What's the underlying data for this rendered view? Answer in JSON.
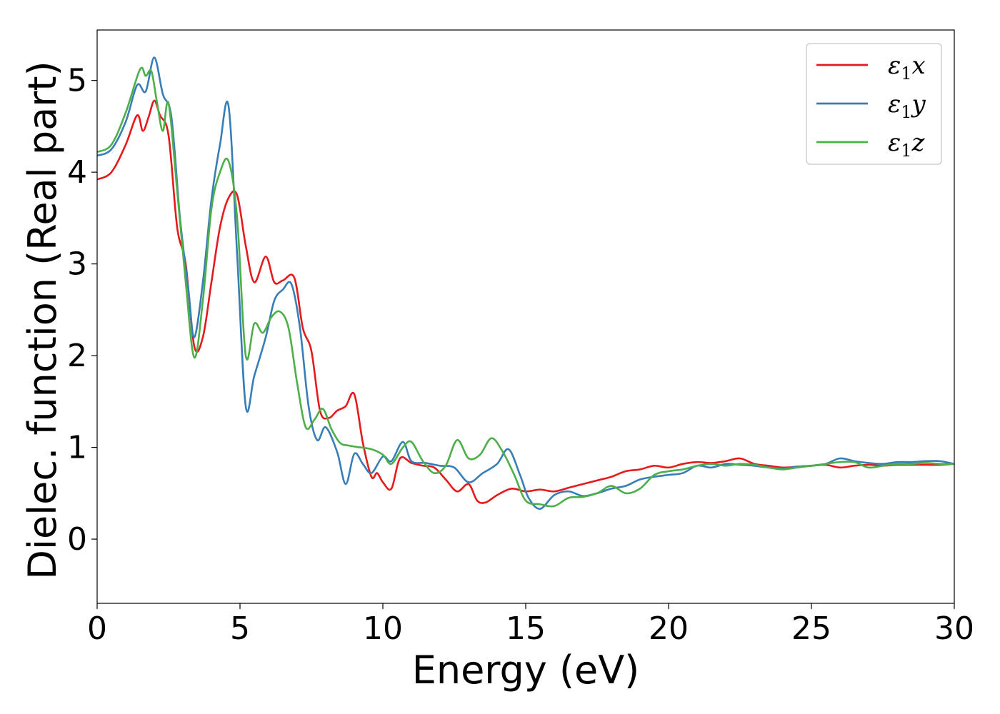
{
  "chart_data": {
    "type": "line",
    "title": "",
    "xlabel": "Energy (eV)",
    "ylabel": "Dielec. function (Real part)",
    "xlim": [
      0,
      30
    ],
    "ylim": [
      -0.7,
      5.55
    ],
    "xticks": [
      0,
      5,
      10,
      15,
      20,
      25,
      30
    ],
    "yticks": [
      0,
      1,
      2,
      3,
      4,
      5
    ],
    "xtick_labels": [
      "0",
      "5",
      "10",
      "15",
      "20",
      "25",
      "30"
    ],
    "ytick_labels": [
      "0",
      "1",
      "2",
      "3",
      "4",
      "5"
    ],
    "grid": false,
    "legend_position": "top-right",
    "series": [
      {
        "name": "ε1x",
        "symbol": "ε",
        "sub": "1",
        "suffix": "x",
        "color": "#e41a1c",
        "x": [
          0,
          0.5,
          1.0,
          1.4,
          1.6,
          1.8,
          2.0,
          2.2,
          2.5,
          2.8,
          3.1,
          3.4,
          3.7,
          4.0,
          4.3,
          4.6,
          4.9,
          5.2,
          5.5,
          5.9,
          6.2,
          6.5,
          6.9,
          7.2,
          7.5,
          7.8,
          8.1,
          8.4,
          8.7,
          9.0,
          9.3,
          9.6,
          9.8,
          10.0,
          10.3,
          10.6,
          11.0,
          11.4,
          11.8,
          12.2,
          12.6,
          13.0,
          13.3,
          13.6,
          14.0,
          14.5,
          15.0,
          15.5,
          16.0,
          16.5,
          17.0,
          17.5,
          18.0,
          18.5,
          19.0,
          19.5,
          20.0,
          20.5,
          21.0,
          21.5,
          22.0,
          22.5,
          23.0,
          23.5,
          24.0,
          24.5,
          25.0,
          25.5,
          26.0,
          26.5,
          27.0,
          27.5,
          28.0,
          28.5,
          29.0,
          29.5,
          30.0
        ],
        "y": [
          3.92,
          4.0,
          4.3,
          4.62,
          4.45,
          4.6,
          4.78,
          4.62,
          4.4,
          3.4,
          3.0,
          2.1,
          2.2,
          2.8,
          3.4,
          3.72,
          3.75,
          3.2,
          2.8,
          3.08,
          2.8,
          2.82,
          2.85,
          2.3,
          2.05,
          1.4,
          1.32,
          1.4,
          1.45,
          1.58,
          1.05,
          0.68,
          0.72,
          0.62,
          0.55,
          0.88,
          0.83,
          0.8,
          0.78,
          0.65,
          0.52,
          0.6,
          0.42,
          0.4,
          0.48,
          0.55,
          0.52,
          0.54,
          0.52,
          0.56,
          0.6,
          0.64,
          0.68,
          0.74,
          0.76,
          0.8,
          0.78,
          0.82,
          0.84,
          0.83,
          0.85,
          0.88,
          0.82,
          0.8,
          0.78,
          0.79,
          0.8,
          0.81,
          0.78,
          0.8,
          0.81,
          0.8,
          0.81,
          0.81,
          0.81,
          0.81,
          0.82
        ]
      },
      {
        "name": "ε1y",
        "symbol": "ε",
        "sub": "1",
        "suffix": "y",
        "color": "#377eb8",
        "x": [
          0,
          0.5,
          1.0,
          1.4,
          1.7,
          2.0,
          2.3,
          2.6,
          2.9,
          3.2,
          3.4,
          3.7,
          4.0,
          4.3,
          4.6,
          4.9,
          5.2,
          5.5,
          5.9,
          6.2,
          6.5,
          6.8,
          7.1,
          7.4,
          7.7,
          8.0,
          8.4,
          8.7,
          9.0,
          9.3,
          9.6,
          10.0,
          10.3,
          10.7,
          11.0,
          11.5,
          12.0,
          12.5,
          13.0,
          13.5,
          14.0,
          14.4,
          14.8,
          15.1,
          15.5,
          16.0,
          16.5,
          17.0,
          17.5,
          18.0,
          18.5,
          19.0,
          19.5,
          20.0,
          20.5,
          21.0,
          21.5,
          22.0,
          22.5,
          23.0,
          23.5,
          24.0,
          24.5,
          25.0,
          25.5,
          26.0,
          26.5,
          27.0,
          27.5,
          28.0,
          28.5,
          29.0,
          29.5,
          30.0
        ],
        "y": [
          4.18,
          4.25,
          4.55,
          4.95,
          4.88,
          5.25,
          4.85,
          4.6,
          3.5,
          2.7,
          2.2,
          2.8,
          3.7,
          4.3,
          4.72,
          3.1,
          1.45,
          1.78,
          2.2,
          2.6,
          2.72,
          2.78,
          2.3,
          1.45,
          1.08,
          1.22,
          0.95,
          0.6,
          0.93,
          0.82,
          0.72,
          0.9,
          0.85,
          1.06,
          0.85,
          0.83,
          0.8,
          0.78,
          0.62,
          0.72,
          0.82,
          0.98,
          0.7,
          0.45,
          0.33,
          0.48,
          0.52,
          0.47,
          0.5,
          0.55,
          0.58,
          0.65,
          0.68,
          0.7,
          0.72,
          0.8,
          0.78,
          0.82,
          0.81,
          0.8,
          0.78,
          0.77,
          0.79,
          0.8,
          0.82,
          0.88,
          0.85,
          0.83,
          0.82,
          0.84,
          0.84,
          0.85,
          0.85,
          0.82
        ]
      },
      {
        "name": "ε1z",
        "symbol": "ε",
        "sub": "1",
        "suffix": "z",
        "color": "#4daf4a",
        "x": [
          0,
          0.5,
          1.0,
          1.5,
          1.7,
          1.9,
          2.1,
          2.3,
          2.5,
          2.8,
          3.1,
          3.4,
          3.7,
          4.0,
          4.3,
          4.6,
          4.9,
          5.2,
          5.5,
          5.8,
          6.1,
          6.4,
          6.7,
          7.0,
          7.3,
          7.6,
          7.9,
          8.2,
          8.5,
          8.8,
          9.2,
          9.6,
          10.0,
          10.3,
          10.7,
          11.0,
          11.4,
          11.8,
          12.2,
          12.6,
          13.0,
          13.4,
          13.8,
          14.2,
          14.6,
          15.0,
          15.5,
          16.0,
          16.5,
          17.0,
          17.5,
          18.0,
          18.5,
          19.0,
          19.5,
          20.0,
          20.5,
          21.0,
          21.5,
          22.0,
          22.5,
          23.0,
          23.5,
          24.0,
          24.5,
          25.0,
          25.5,
          26.0,
          26.5,
          27.0,
          27.5,
          28.0,
          28.5,
          29.0,
          29.5,
          30.0
        ],
        "y": [
          4.22,
          4.3,
          4.65,
          5.12,
          5.05,
          5.1,
          4.75,
          4.45,
          4.75,
          3.8,
          2.8,
          1.98,
          2.6,
          3.6,
          4.0,
          4.12,
          3.5,
          2.0,
          2.35,
          2.25,
          2.42,
          2.48,
          2.3,
          1.7,
          1.22,
          1.3,
          1.42,
          1.2,
          1.05,
          1.02,
          1.0,
          0.98,
          0.92,
          0.82,
          1.0,
          1.06,
          0.85,
          0.72,
          0.8,
          1.08,
          0.88,
          0.92,
          1.1,
          0.95,
          0.7,
          0.42,
          0.38,
          0.36,
          0.45,
          0.46,
          0.5,
          0.58,
          0.5,
          0.55,
          0.7,
          0.74,
          0.76,
          0.8,
          0.82,
          0.8,
          0.82,
          0.81,
          0.78,
          0.76,
          0.78,
          0.8,
          0.82,
          0.84,
          0.84,
          0.78,
          0.8,
          0.82,
          0.82,
          0.83,
          0.82,
          0.82
        ]
      }
    ]
  }
}
